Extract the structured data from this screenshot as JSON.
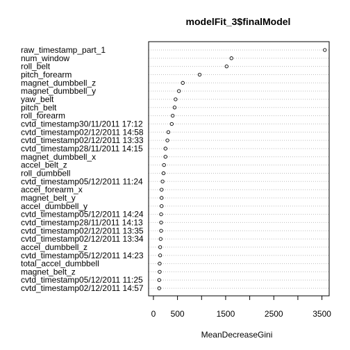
{
  "chart_data": {
    "type": "dotplot",
    "title": "modelFit_3$finalModel",
    "xlabel": "MeanDecreaseGini",
    "ylabel": "",
    "xlim": [
      -100,
      3650
    ],
    "xticks": [
      0,
      500,
      1500,
      2500,
      3500
    ],
    "xticks_minor": [
      1000,
      2000,
      3000
    ],
    "grid": "dotted horizontal",
    "legend": "none",
    "categories": [
      "raw_timestamp_part_1",
      "num_window",
      "roll_belt",
      "pitch_forearm",
      "magnet_dumbbell_z",
      "magnet_dumbbell_y",
      "yaw_belt",
      "pitch_belt",
      "roll_forearm",
      "cvtd_timestamp30/11/2011 17:12",
      "cvtd_timestamp02/12/2011 14:58",
      "cvtd_timestamp02/12/2011 13:33",
      "cvtd_timestamp28/11/2011 14:15",
      "magnet_dumbbell_x",
      "accel_belt_z",
      "roll_dumbbell",
      "cvtd_timestamp05/12/2011 11:24",
      "accel_forearm_x",
      "magnet_belt_y",
      "accel_dumbbell_y",
      "cvtd_timestamp05/12/2011 14:24",
      "cvtd_timestamp28/11/2011 14:13",
      "cvtd_timestamp02/12/2011 13:35",
      "cvtd_timestamp02/12/2011 13:34",
      "accel_dumbbell_z",
      "cvtd_timestamp05/12/2011 14:23",
      "total_accel_dumbbell",
      "magnet_belt_z",
      "cvtd_timestamp05/12/2011 11:25",
      "cvtd_timestamp02/12/2011 14:57"
    ],
    "values": [
      3560,
      1620,
      1520,
      960,
      610,
      530,
      460,
      440,
      400,
      380,
      310,
      290,
      250,
      250,
      220,
      210,
      190,
      170,
      170,
      170,
      160,
      160,
      160,
      150,
      140,
      140,
      130,
      130,
      120,
      120
    ]
  }
}
